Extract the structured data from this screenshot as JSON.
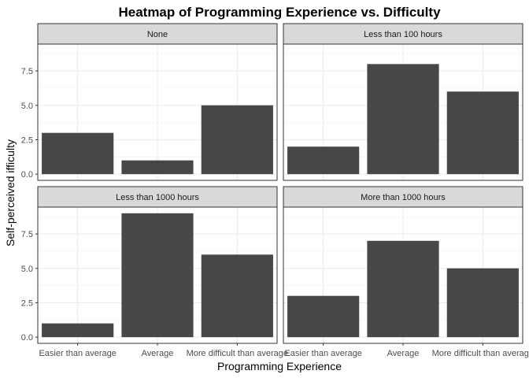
{
  "chart_data": {
    "type": "bar",
    "title": "Heatmap of Programming Experience vs. Difficulty",
    "xlabel": "Programming Experience",
    "ylabel": "Self-perceived ifficulty",
    "categories": [
      "Easier than average",
      "Average",
      "More difficult than average"
    ],
    "ylim": [
      -0.45,
      9.45
    ],
    "yticks": [
      0,
      2.5,
      5,
      7.5
    ],
    "ytick_labels": [
      "0.0",
      "2.5",
      "5.0",
      "7.5"
    ],
    "grid": true,
    "bar_color": "#474747",
    "panels": [
      {
        "name": "None",
        "values": [
          3,
          1,
          5
        ]
      },
      {
        "name": "Less than 100 hours",
        "values": [
          2,
          8,
          6
        ]
      },
      {
        "name": "Less than 1000 hours",
        "values": [
          1,
          9,
          6
        ]
      },
      {
        "name": "More than 1000 hours",
        "values": [
          3,
          7,
          5
        ]
      }
    ]
  }
}
